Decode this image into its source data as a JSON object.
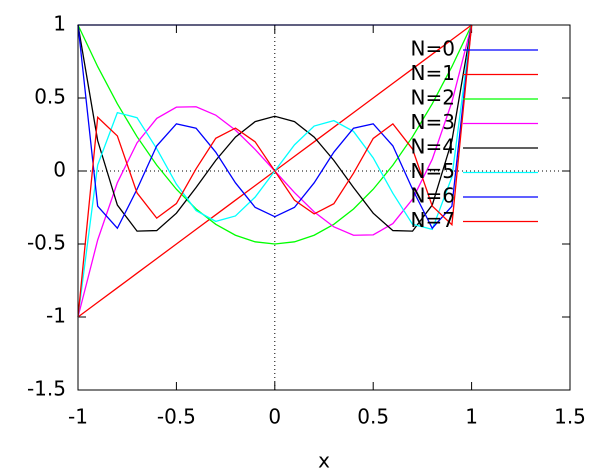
{
  "chart_data": {
    "type": "line",
    "x_label": "x",
    "x": [
      -1,
      -0.9,
      -0.8,
      -0.7,
      -0.6,
      -0.5,
      -0.4,
      -0.3,
      -0.2,
      -0.1,
      0,
      0.1,
      0.2,
      0.3,
      0.4,
      0.5,
      0.6,
      0.7,
      0.8,
      0.9,
      1
    ],
    "series": [
      {
        "name": "N=0",
        "color": "#0000ff",
        "values": [
          1,
          1,
          1,
          1,
          1,
          1,
          1,
          1,
          1,
          1,
          1,
          1,
          1,
          1,
          1,
          1,
          1,
          1,
          1,
          1,
          1
        ]
      },
      {
        "name": "N=1",
        "color": "#ff0000",
        "values": [
          -1,
          -0.9,
          -0.8,
          -0.7,
          -0.6,
          -0.5,
          -0.4,
          -0.3,
          -0.2,
          -0.1,
          0,
          0.1,
          0.2,
          0.3,
          0.4,
          0.5,
          0.6,
          0.7,
          0.8,
          0.9,
          1
        ]
      },
      {
        "name": "N=2",
        "color": "#00ff00",
        "values": [
          1,
          0.715,
          0.46,
          0.235,
          0.04,
          -0.125,
          -0.26,
          -0.365,
          -0.44,
          -0.485,
          -0.5,
          -0.485,
          -0.44,
          -0.365,
          -0.26,
          -0.125,
          0.04,
          0.235,
          0.46,
          0.715,
          1
        ]
      },
      {
        "name": "N=3",
        "color": "#ff00ff",
        "values": [
          -1,
          -0.4725,
          -0.08,
          0.1925,
          0.36,
          0.4375,
          0.44,
          0.3825,
          0.28,
          0.1475,
          0,
          -0.1475,
          -0.28,
          -0.3825,
          -0.44,
          -0.4375,
          -0.36,
          -0.1925,
          0.08,
          0.4725,
          1
        ]
      },
      {
        "name": "N=4",
        "color": "#000000",
        "values": [
          1,
          0.208,
          -0.233,
          -0.412,
          -0.408,
          -0.289,
          -0.113,
          0.073,
          0.232,
          0.338,
          0.375,
          0.338,
          0.232,
          0.073,
          -0.113,
          -0.289,
          -0.408,
          -0.412,
          -0.233,
          0.208,
          1
        ]
      },
      {
        "name": "N=5",
        "color": "#00ffff",
        "values": [
          -1,
          0.041,
          0.4,
          0.365,
          0.153,
          -0.09,
          -0.271,
          -0.345,
          -0.308,
          -0.179,
          0,
          0.179,
          0.308,
          0.345,
          0.271,
          0.09,
          -0.153,
          -0.365,
          -0.4,
          -0.041,
          1
        ]
      },
      {
        "name": "N=6",
        "color": "#0000ff",
        "values": [
          1,
          -0.241,
          -0.392,
          -0.125,
          0.172,
          0.323,
          0.293,
          0.129,
          -0.081,
          -0.249,
          -0.313,
          -0.249,
          -0.081,
          0.129,
          0.293,
          0.323,
          0.172,
          -0.125,
          -0.392,
          -0.241,
          1
        ]
      },
      {
        "name": "N=7",
        "color": "#ff0000",
        "values": [
          -1,
          0.368,
          0.24,
          -0.15,
          -0.323,
          -0.223,
          0.015,
          0.224,
          0.294,
          0.2,
          0,
          -0.2,
          -0.294,
          -0.224,
          -0.015,
          0.223,
          0.323,
          0.15,
          -0.24,
          -0.368,
          1
        ]
      }
    ],
    "xlim": [
      -1,
      1.5
    ],
    "xticks": [
      -1,
      -0.5,
      0,
      0.5,
      1,
      1.5
    ],
    "ylim": [
      -1.5,
      1
    ],
    "yticks": [
      -1.5,
      -1,
      -0.5,
      0,
      0.5,
      1
    ],
    "zero_axes": true,
    "legend": "top-right"
  }
}
